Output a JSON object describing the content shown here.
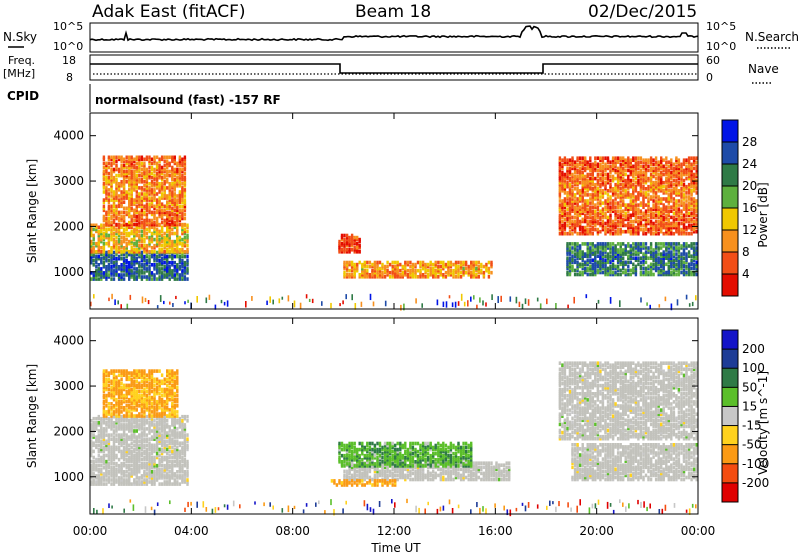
{
  "header": {
    "station": "Adak East (fitACF)",
    "beam": "Beam 18",
    "date": "02/Dec/2015"
  },
  "top_panels": {
    "nsky_label": "N.Sky",
    "nsky_ticks": [
      "10^5",
      "10^0"
    ],
    "nsearch_label": "N.Search",
    "nsearch_ticks": [
      "10^5",
      "10^0"
    ],
    "freq_label": "Freq.",
    "freq_unit": "[MHz]",
    "freq_ticks": [
      "18",
      "8"
    ],
    "nave_label": "Nave",
    "nave_ticks": [
      "60",
      "0"
    ],
    "cpid_label": "CPID",
    "cpid_text": "normalsound (fast) -157 RF"
  },
  "colors": {
    "power_scale": [
      "#0014e6",
      "#1e4ba8",
      "#2f7a46",
      "#5eb03e",
      "#f0c800",
      "#f7901e",
      "#f24e17",
      "#e40d00"
    ],
    "velocity_scale": [
      "#1414c8",
      "#1e3c96",
      "#2f7a46",
      "#5bbf2a",
      "#c7c7c7",
      "#ffd21e",
      "#fb9a14",
      "#f44c10",
      "#e00000"
    ],
    "ground_scatter": "#c2c2bc"
  },
  "chart_data": [
    {
      "type": "heatmap",
      "title": "",
      "xlabel": "Time UT",
      "ylabel": "Slant Range [km]",
      "x_range_hours": [
        0,
        24
      ],
      "x_ticks": [
        "00:00",
        "04:00",
        "08:00",
        "12:00",
        "16:00",
        "20:00",
        "00:00"
      ],
      "y_range_km": [
        180,
        4500
      ],
      "y_ticks": [
        "1000",
        "2000",
        "3000",
        "4000"
      ],
      "colorbar": {
        "label": "Power [dB]",
        "ticks": [
          "28",
          "24",
          "20",
          "16",
          "12",
          "8",
          "4"
        ],
        "range": [
          0,
          32
        ]
      },
      "echo_regions": [
        {
          "t_start": 0.0,
          "t_end": 3.9,
          "r_start": 800,
          "r_end": 1400,
          "level_db": 26
        },
        {
          "t_start": 0.0,
          "t_end": 3.9,
          "r_start": 1400,
          "r_end": 2000,
          "level_db": 14
        },
        {
          "t_start": 0.5,
          "t_end": 3.8,
          "r_start": 2000,
          "r_end": 3500,
          "level_db": 10
        },
        {
          "t_start": 10.0,
          "t_end": 15.8,
          "r_start": 850,
          "r_end": 1200,
          "level_db": 12
        },
        {
          "t_start": 9.8,
          "t_end": 10.6,
          "r_start": 1400,
          "r_end": 1800,
          "level_db": 6
        },
        {
          "t_start": 18.8,
          "t_end": 24.0,
          "r_start": 900,
          "r_end": 1600,
          "level_db": 24
        },
        {
          "t_start": 18.5,
          "t_end": 24.0,
          "r_start": 1800,
          "r_end": 3500,
          "level_db": 9
        }
      ]
    },
    {
      "type": "heatmap",
      "title": "",
      "xlabel": "Time UT",
      "ylabel": "Slant Range [km]",
      "x_range_hours": [
        0,
        24
      ],
      "x_ticks": [
        "00:00",
        "04:00",
        "08:00",
        "12:00",
        "16:00",
        "20:00",
        "00:00"
      ],
      "y_range_km": [
        180,
        4500
      ],
      "y_ticks": [
        "1000",
        "2000",
        "3000",
        "4000"
      ],
      "colorbar": {
        "label": "Velocity [m s^-1]",
        "ticks": [
          "200",
          "100",
          "50",
          "15",
          "-15",
          "-50",
          "-100",
          "-200"
        ],
        "range": [
          -250,
          250
        ]
      },
      "echo_regions": [
        {
          "t_start": 0.0,
          "t_end": 3.9,
          "r_start": 800,
          "r_end": 2300,
          "velocity": 0,
          "ground_scatter": true
        },
        {
          "t_start": 0.5,
          "t_end": 3.5,
          "r_start": 2300,
          "r_end": 3300,
          "velocity": -60,
          "ground_scatter": false
        },
        {
          "t_start": 10.0,
          "t_end": 16.5,
          "r_start": 900,
          "r_end": 1300,
          "velocity": 0,
          "ground_scatter": true
        },
        {
          "t_start": 9.8,
          "t_end": 15.0,
          "r_start": 1200,
          "r_end": 1700,
          "velocity": 40,
          "ground_scatter": false
        },
        {
          "t_start": 9.5,
          "t_end": 12.0,
          "r_start": 780,
          "r_end": 900,
          "velocity": -70,
          "ground_scatter": false
        },
        {
          "t_start": 19.0,
          "t_end": 24.0,
          "r_start": 900,
          "r_end": 1700,
          "velocity": 0,
          "ground_scatter": true
        },
        {
          "t_start": 18.5,
          "t_end": 24.0,
          "r_start": 1800,
          "r_end": 3500,
          "velocity": 0,
          "ground_scatter": true
        }
      ]
    }
  ]
}
